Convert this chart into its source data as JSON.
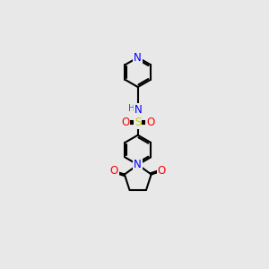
{
  "bg_color": "#e8e8e8",
  "atom_colors": {
    "N": "#0000ff",
    "O": "#ff0000",
    "S": "#cccc00",
    "H": "#008080",
    "C": "#000000"
  },
  "bond_color": "#000000",
  "bond_lw": 1.5,
  "font_size": 8.5,
  "fig_size": [
    3.0,
    3.0
  ],
  "dpi": 100,
  "xlim": [
    0,
    10
  ],
  "ylim": [
    0,
    14
  ]
}
